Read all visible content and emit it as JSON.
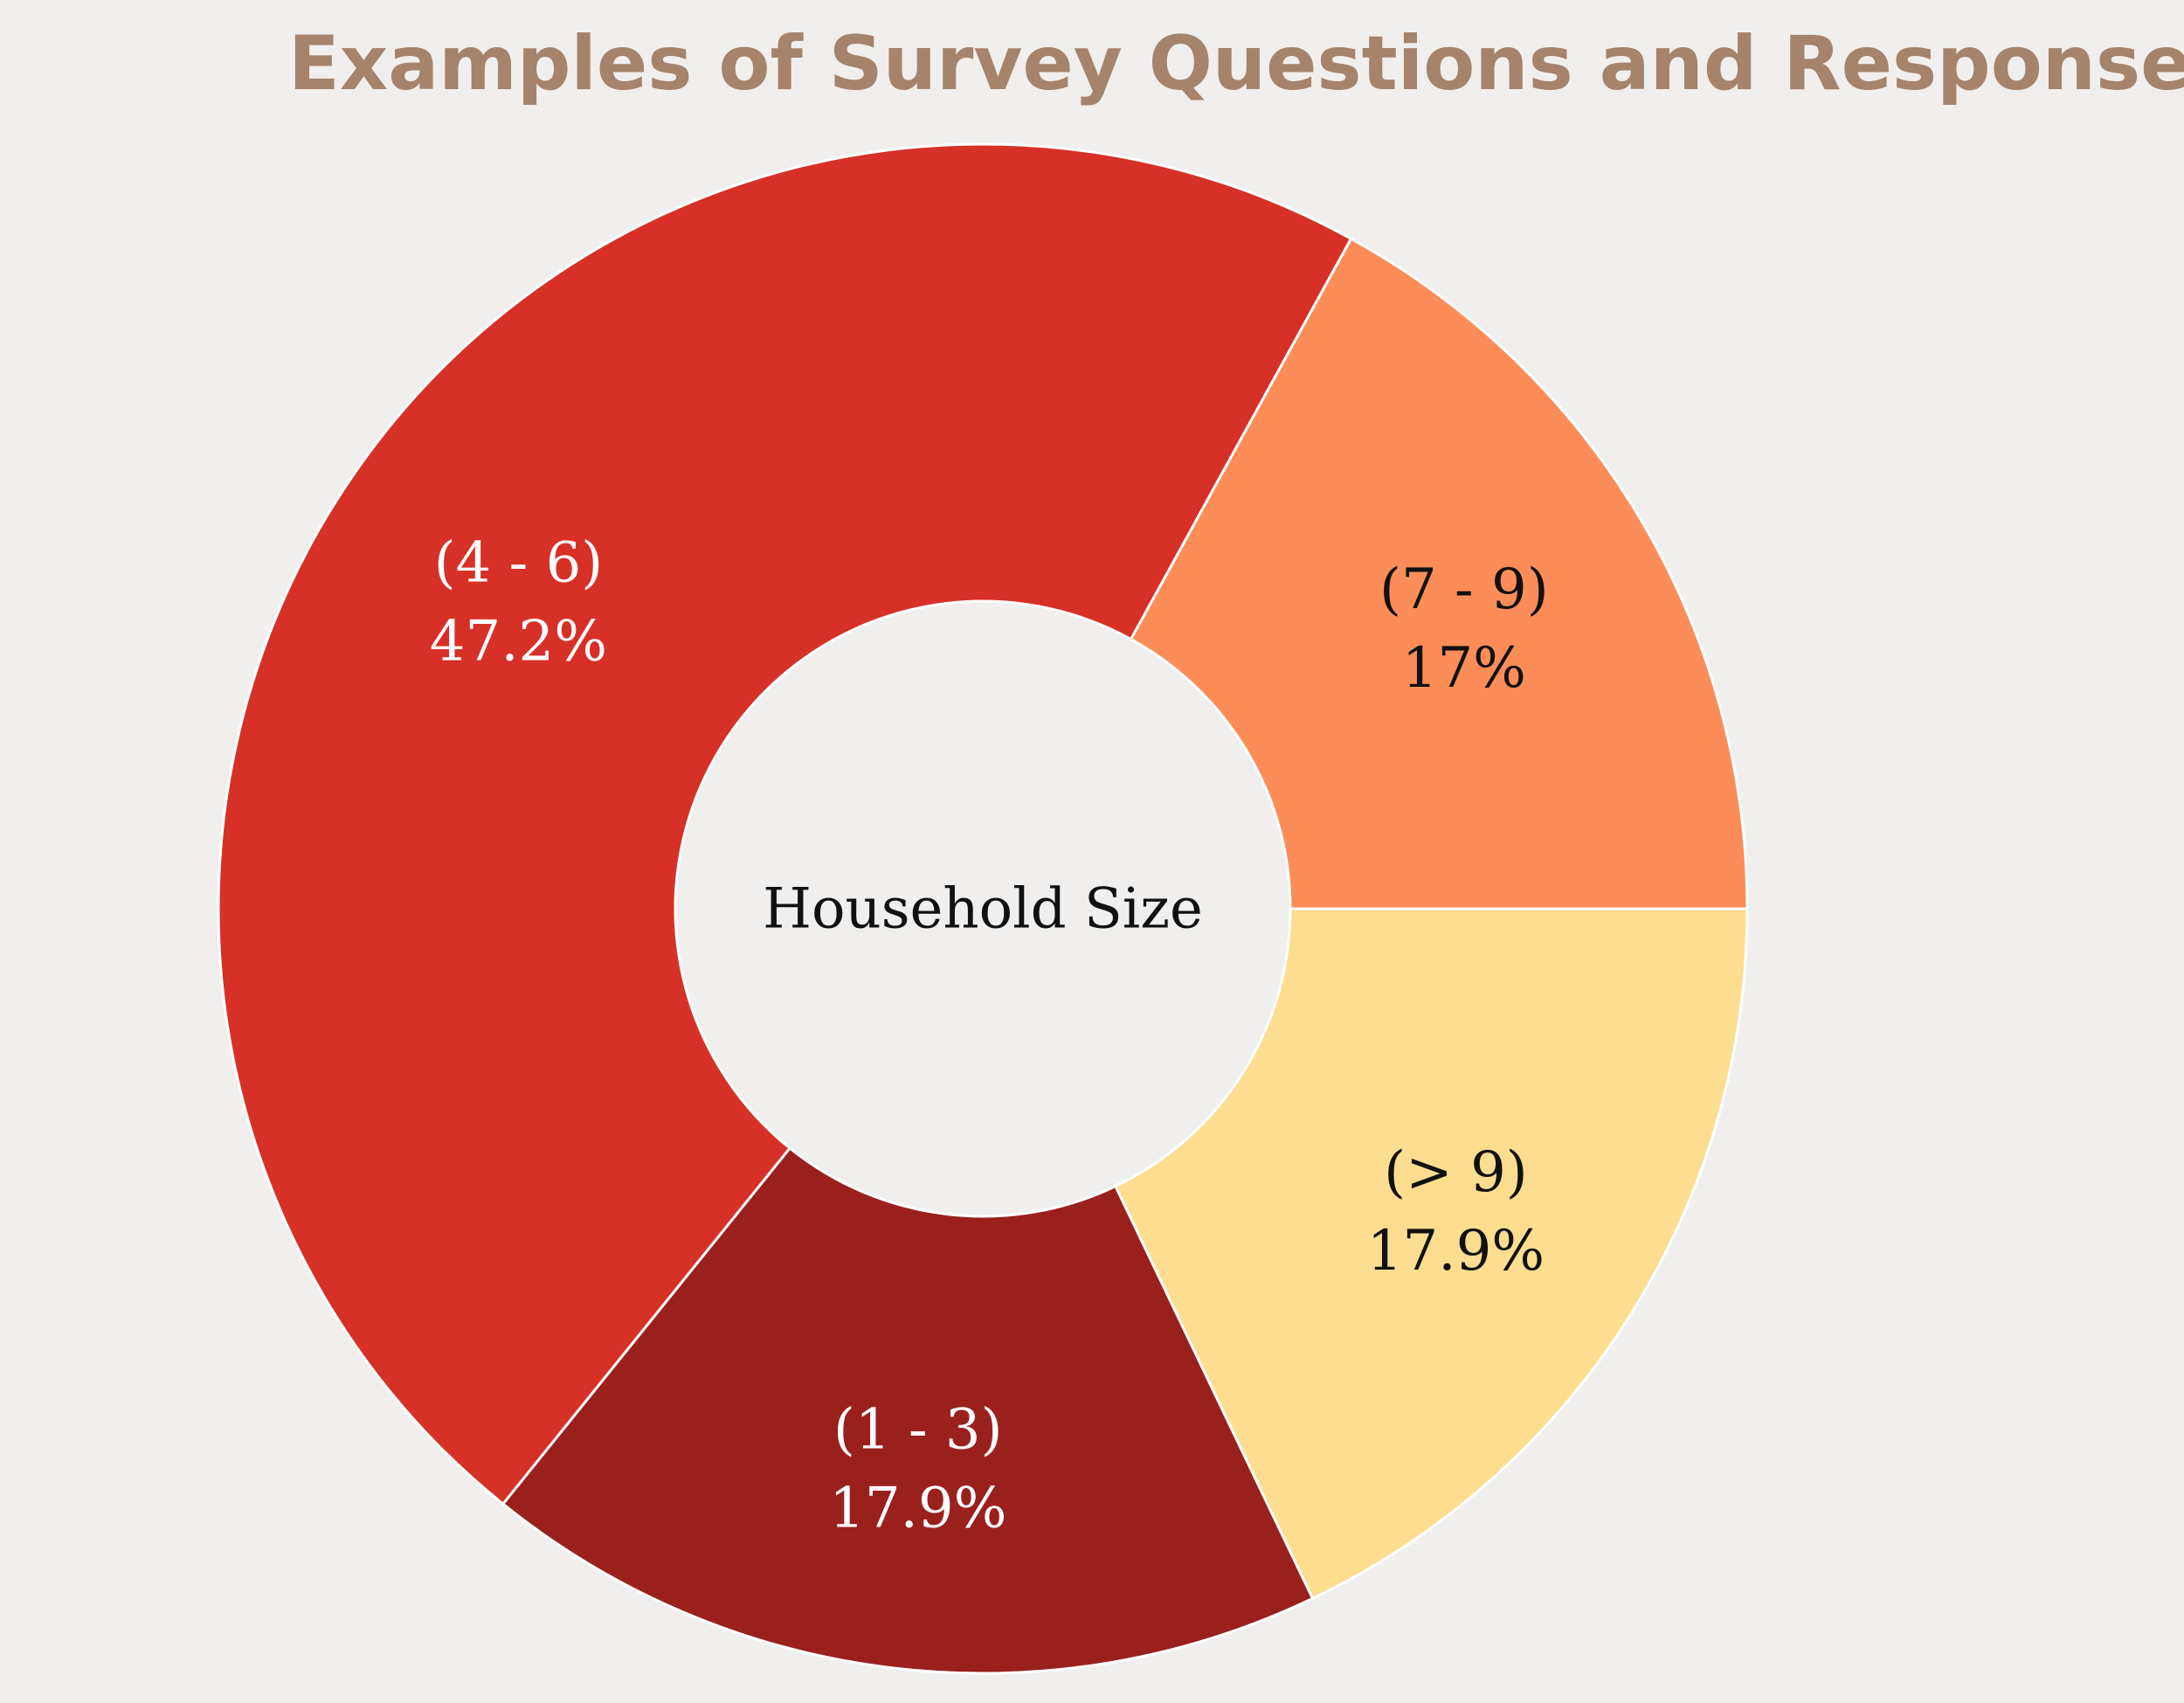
{
  "chart_data": {
    "type": "pie",
    "style": "donut",
    "title": "Examples of Survey Questions and Responses",
    "center_label": "Household Size",
    "slices": [
      {
        "label": "(> 9)",
        "value": 17.9,
        "value_label": "17.9%",
        "color": "#fddd90",
        "text_color": "#111111"
      },
      {
        "label": "(1 - 3)",
        "value": 17.9,
        "value_label": "17.9%",
        "color": "#9a201e",
        "text_color": "#ffffff"
      },
      {
        "label": "(4 - 6)",
        "value": 47.2,
        "value_label": "47.2%",
        "color": "#d73027",
        "text_color": "#ffffff"
      },
      {
        "label": "(7 - 9)",
        "value": 17.0,
        "value_label": "17%",
        "color": "#fc8d59",
        "text_color": "#111111"
      }
    ],
    "start": "3 o'clock",
    "direction": "clockwise",
    "legend": "none"
  },
  "colors": {
    "background": "#f0efed",
    "title": "#a6836b",
    "separator": "#ffffff"
  }
}
